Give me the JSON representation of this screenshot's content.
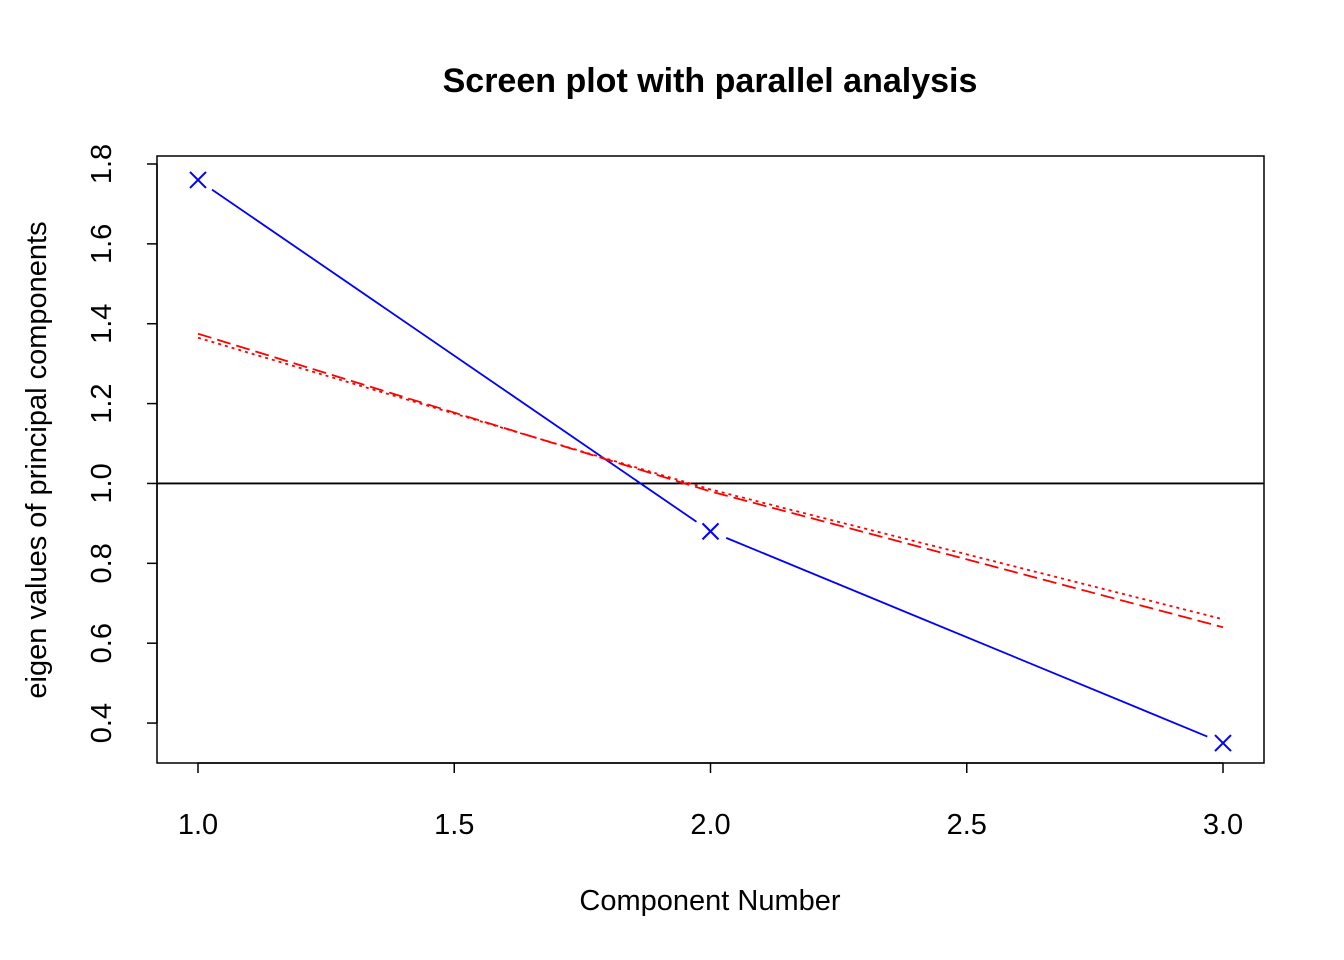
{
  "chart_data": {
    "type": "line",
    "title": "Screen plot with parallel analysis",
    "xlabel": "Component Number",
    "ylabel": "eigen values of principal components",
    "xlim": [
      0.92,
      3.08
    ],
    "ylim": [
      0.3,
      1.82
    ],
    "x_ticks": [
      1.0,
      1.5,
      2.0,
      2.5,
      3.0
    ],
    "x_tick_labels": [
      "1.0",
      "1.5",
      "2.0",
      "2.5",
      "3.0"
    ],
    "y_ticks": [
      0.4,
      0.6,
      0.8,
      1.0,
      1.2,
      1.4,
      1.6,
      1.8
    ],
    "y_tick_labels": [
      "0.4",
      "0.6",
      "0.8",
      "1.0",
      "1.2",
      "1.4",
      "1.6",
      "1.8"
    ],
    "reference_line": {
      "y": 1.0,
      "color": "#000000"
    },
    "x": [
      1,
      2,
      3
    ],
    "series": [
      {
        "values": [
          1.76,
          0.88,
          0.35
        ],
        "color": "#0000ff",
        "style": "solid",
        "marker": "x"
      },
      {
        "values": [
          1.375,
          0.98,
          0.64
        ],
        "color": "#ff0000",
        "style": "dashed"
      },
      {
        "values": [
          1.365,
          0.985,
          0.66
        ],
        "color": "#ff0000",
        "style": "dotted"
      }
    ]
  }
}
